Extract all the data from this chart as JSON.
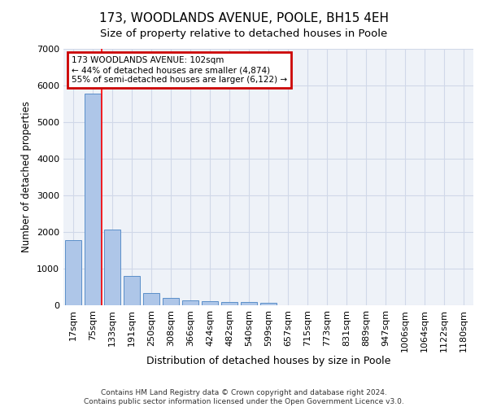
{
  "title": "173, WOODLANDS AVENUE, POOLE, BH15 4EH",
  "subtitle": "Size of property relative to detached houses in Poole",
  "xlabel": "Distribution of detached houses by size in Poole",
  "ylabel": "Number of detached properties",
  "bar_labels": [
    "17sqm",
    "75sqm",
    "133sqm",
    "191sqm",
    "250sqm",
    "308sqm",
    "366sqm",
    "424sqm",
    "482sqm",
    "540sqm",
    "599sqm",
    "657sqm",
    "715sqm",
    "773sqm",
    "831sqm",
    "889sqm",
    "947sqm",
    "1006sqm",
    "1064sqm",
    "1122sqm",
    "1180sqm"
  ],
  "bar_values": [
    1780,
    5780,
    2060,
    800,
    340,
    195,
    125,
    110,
    95,
    85,
    75,
    0,
    0,
    0,
    0,
    0,
    0,
    0,
    0,
    0,
    0
  ],
  "bar_color": "#aec6e8",
  "bar_edge_color": "#5b8fc9",
  "ylim": [
    0,
    7000
  ],
  "yticks": [
    0,
    1000,
    2000,
    3000,
    4000,
    5000,
    6000,
    7000
  ],
  "annotation_line1": "173 WOODLANDS AVENUE: 102sqm",
  "annotation_line2": "← 44% of detached houses are smaller (4,874)",
  "annotation_line3": "55% of semi-detached houses are larger (6,122) →",
  "annotation_box_color": "#cc0000",
  "grid_color": "#d0d8e8",
  "background_color": "#eef2f8",
  "footer_line1": "Contains HM Land Registry data © Crown copyright and database right 2024.",
  "footer_line2": "Contains public sector information licensed under the Open Government Licence v3.0."
}
